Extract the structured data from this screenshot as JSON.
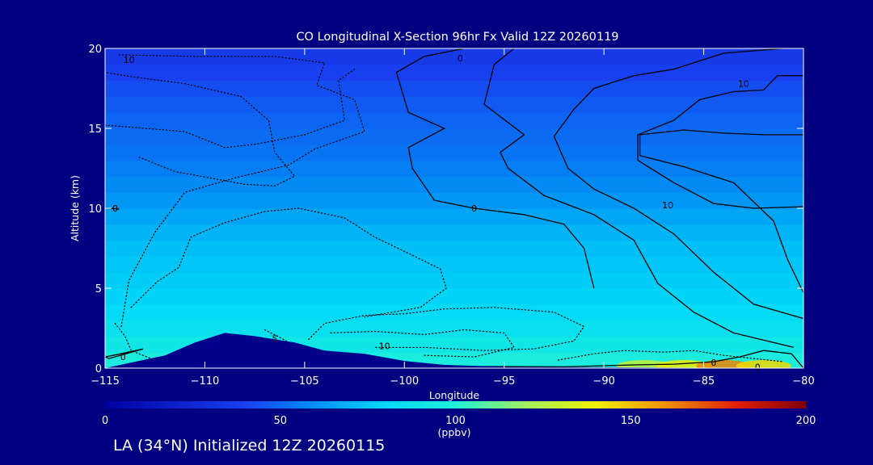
{
  "chart_data": {
    "type": "heatmap",
    "title": "CO Longitudinal X-Section 96hr  Fx Valid 12Z 20260119",
    "xlabel": "Longitude",
    "ylabel": "Altitude (km)",
    "xlim": [
      -115,
      -80
    ],
    "ylim": [
      0,
      20
    ],
    "x_ticks": [
      -115,
      -110,
      -105,
      -100,
      -95,
      -90,
      -85,
      -80
    ],
    "x_tick_labels": [
      "−115",
      "−110",
      "−105",
      "−100",
      "−95",
      "−90",
      "−85",
      "−80"
    ],
    "y_ticks": [
      0,
      5,
      10,
      15,
      20
    ],
    "y_tick_labels": [
      "0",
      "5",
      "10",
      "15",
      "20"
    ],
    "colorbar": {
      "label": "(ppbv)",
      "range": [
        0,
        200
      ],
      "ticks": [
        0,
        50,
        100,
        150,
        200
      ],
      "tick_labels": [
        "0",
        "50",
        "100",
        "150",
        "200"
      ]
    },
    "color_stops": [
      {
        "value": 0,
        "color": "#0000a0"
      },
      {
        "value": 40,
        "color": "#1840f0"
      },
      {
        "value": 60,
        "color": "#0090f4"
      },
      {
        "value": 80,
        "color": "#00d8f8"
      },
      {
        "value": 100,
        "color": "#20f0d8"
      },
      {
        "value": 120,
        "color": "#a0f060"
      },
      {
        "value": 140,
        "color": "#f0f000"
      },
      {
        "value": 160,
        "color": "#f09000"
      },
      {
        "value": 180,
        "color": "#e02000"
      },
      {
        "value": 200,
        "color": "#800000"
      }
    ],
    "co_profile": [
      {
        "altitude": 0,
        "ppbv": 100
      },
      {
        "altitude": 1,
        "ppbv": 94
      },
      {
        "altitude": 2,
        "ppbv": 88
      },
      {
        "altitude": 3,
        "ppbv": 84
      },
      {
        "altitude": 4,
        "ppbv": 80
      },
      {
        "altitude": 5,
        "ppbv": 78
      },
      {
        "altitude": 6,
        "ppbv": 76
      },
      {
        "altitude": 7,
        "ppbv": 74
      },
      {
        "altitude": 8,
        "ppbv": 72
      },
      {
        "altitude": 9,
        "ppbv": 68
      },
      {
        "altitude": 10,
        "ppbv": 64
      },
      {
        "altitude": 11,
        "ppbv": 60
      },
      {
        "altitude": 12,
        "ppbv": 57
      },
      {
        "altitude": 13,
        "ppbv": 54
      },
      {
        "altitude": 14,
        "ppbv": 52
      },
      {
        "altitude": 15,
        "ppbv": 50
      },
      {
        "altitude": 16,
        "ppbv": 48
      },
      {
        "altitude": 17,
        "ppbv": 45
      },
      {
        "altitude": 18,
        "ppbv": 42
      },
      {
        "altitude": 19,
        "ppbv": 38
      },
      {
        "altitude": 20,
        "ppbv": 34
      }
    ],
    "surface_enhancement": [
      {
        "lon": -88,
        "ppbv": 128
      },
      {
        "lon": -86,
        "ppbv": 140
      },
      {
        "lon": -84,
        "ppbv": 162
      },
      {
        "lon": -82,
        "ppbv": 145
      }
    ],
    "terrain": [
      {
        "lon": -115,
        "km": 0
      },
      {
        "lon": -112,
        "km": 0.8
      },
      {
        "lon": -110.5,
        "km": 1.6
      },
      {
        "lon": -109,
        "km": 2.2
      },
      {
        "lon": -107.5,
        "km": 2.0
      },
      {
        "lon": -105.5,
        "km": 1.6
      },
      {
        "lon": -104,
        "km": 1.1
      },
      {
        "lon": -102,
        "km": 0.9
      },
      {
        "lon": -100,
        "km": 0.45
      },
      {
        "lon": -98,
        "km": 0.2
      },
      {
        "lon": -95,
        "km": 0.08
      },
      {
        "lon": -90,
        "km": 0.05
      },
      {
        "lon": -80,
        "km": 0
      }
    ],
    "contours": [
      {
        "style": "solid",
        "points": [
          [
            -97,
            20
          ],
          [
            -99,
            19.5
          ],
          [
            -100.4,
            18.5
          ],
          [
            -99.8,
            16
          ],
          [
            -98,
            15
          ],
          [
            -99.8,
            13.8
          ],
          [
            -99.6,
            12.5
          ],
          [
            -98.5,
            10.5
          ],
          [
            -96.5,
            10
          ],
          [
            -94,
            9.6
          ],
          [
            -92,
            9
          ],
          [
            -91,
            7.5
          ],
          [
            -90.5,
            5
          ]
        ],
        "labels": [
          {
            "lon": -97.2,
            "alt": 19.4,
            "text": "0"
          },
          {
            "lon": -96.5,
            "alt": 10,
            "text": "0"
          }
        ]
      },
      {
        "style": "solid",
        "points": [
          [
            -94.5,
            20
          ],
          [
            -95.5,
            19
          ],
          [
            -96,
            16.5
          ],
          [
            -94,
            14.6
          ],
          [
            -95.2,
            13.5
          ],
          [
            -94.8,
            12.5
          ],
          [
            -93,
            10.8
          ],
          [
            -90.5,
            9.6
          ],
          [
            -88.5,
            8
          ],
          [
            -87.3,
            5.3
          ],
          [
            -85.5,
            3.5
          ],
          [
            -83.5,
            2.2
          ],
          [
            -80.5,
            1.3
          ]
        ],
        "labels": []
      },
      {
        "style": "solid",
        "points": [
          [
            -81,
            20
          ],
          [
            -84,
            19.7
          ],
          [
            -86.5,
            18.7
          ],
          [
            -88.5,
            18.3
          ],
          [
            -90.5,
            17.5
          ],
          [
            -91.5,
            16.2
          ],
          [
            -92.5,
            14.5
          ],
          [
            -91.8,
            12.5
          ],
          [
            -90.5,
            11.2
          ],
          [
            -88.5,
            10
          ],
          [
            -86.5,
            8.4
          ],
          [
            -84.5,
            6
          ],
          [
            -82.5,
            4
          ],
          [
            -80,
            3.1
          ]
        ],
        "labels": [
          {
            "lon": -83,
            "alt": 17.8,
            "text": "10"
          }
        ]
      },
      {
        "style": "solid",
        "points": [
          [
            -80,
            18.3
          ],
          [
            -81.3,
            18.3
          ],
          [
            -82,
            17.4
          ],
          [
            -83.5,
            17.3
          ],
          [
            -85.2,
            16.8
          ],
          [
            -86.5,
            15.5
          ],
          [
            -88.3,
            14.6
          ],
          [
            -88.3,
            13
          ],
          [
            -86.5,
            11.6
          ],
          [
            -84.5,
            10.3
          ],
          [
            -82.5,
            10
          ],
          [
            -80,
            10.1
          ]
        ],
        "labels": [
          {
            "lon": -86.8,
            "alt": 10.2,
            "text": "10"
          }
        ]
      },
      {
        "style": "solid",
        "points": [
          [
            -80,
            14.6
          ],
          [
            -82,
            14.6
          ],
          [
            -84,
            14.7
          ],
          [
            -86,
            14.9
          ],
          [
            -88.2,
            14.6
          ],
          [
            -88.2,
            13.3
          ],
          [
            -86,
            12.6
          ],
          [
            -83.5,
            11.6
          ],
          [
            -81.5,
            9.2
          ],
          [
            -80.8,
            6.8
          ],
          [
            -80,
            4.7
          ]
        ],
        "labels": []
      },
      {
        "style": "solid",
        "points": [
          [
            -80,
            0
          ],
          [
            -80.6,
            0.9
          ],
          [
            -82,
            1.1
          ],
          [
            -83.2,
            0.7
          ],
          [
            -84.5,
            0.4
          ],
          [
            -86.5,
            0.25
          ],
          [
            -88.5,
            0.2
          ],
          [
            -92,
            0.08
          ],
          [
            -97,
            0.1
          ]
        ],
        "labels": [
          {
            "lon": -84.5,
            "alt": 0.35,
            "text": "0"
          },
          {
            "lon": -82.3,
            "alt": 0.08,
            "text": "0"
          }
        ]
      },
      {
        "style": "solid",
        "points": [
          [
            -115,
            0.7
          ],
          [
            -114.4,
            0.85
          ],
          [
            -113.1,
            1.2
          ],
          [
            -114.8,
            0.6
          ],
          [
            -115,
            0.7
          ]
        ],
        "labels": [
          {
            "lon": -114.1,
            "alt": 0.7,
            "text": "0"
          }
        ]
      },
      {
        "style": "solid",
        "points": [
          [
            -115,
            10
          ],
          [
            -114.9,
            10
          ],
          [
            -114.3,
            9.95
          ]
        ],
        "labels": [
          {
            "lon": -114.5,
            "alt": 10,
            "text": "0"
          }
        ]
      },
      {
        "style": "dotted",
        "points": [
          [
            -114.3,
            19.6
          ],
          [
            -110.5,
            19.5
          ],
          [
            -106.5,
            19.5
          ],
          [
            -104,
            19.1
          ],
          [
            -104.4,
            17.7
          ],
          [
            -102.5,
            16.8
          ],
          [
            -102,
            14.8
          ],
          [
            -104.5,
            13.7
          ],
          [
            -105.8,
            12.7
          ],
          [
            -108.5,
            11.9
          ],
          [
            -111,
            11
          ],
          [
            -112.5,
            8.5
          ],
          [
            -113.8,
            5.5
          ],
          [
            -114.2,
            2.5
          ]
        ],
        "labels": [
          {
            "lon": -113.8,
            "alt": 19.3,
            "text": "10"
          }
        ]
      },
      {
        "style": "dotted",
        "points": [
          [
            -113.3,
            13.2
          ],
          [
            -111.5,
            12.3
          ],
          [
            -108,
            11.5
          ],
          [
            -106.5,
            11.4
          ],
          [
            -105.5,
            12
          ],
          [
            -106.5,
            13.5
          ],
          [
            -106.8,
            15.5
          ],
          [
            -108.2,
            17
          ],
          [
            -111,
            17.8
          ],
          [
            -113.5,
            18.2
          ],
          [
            -115,
            18.5
          ]
        ],
        "labels": []
      },
      {
        "style": "dotted",
        "points": [
          [
            -115,
            15.2
          ],
          [
            -113,
            15
          ],
          [
            -111,
            14.8
          ],
          [
            -109,
            13.8
          ],
          [
            -107.5,
            14
          ],
          [
            -105,
            14.6
          ],
          [
            -103,
            15.5
          ],
          [
            -103.3,
            18
          ],
          [
            -102.5,
            18.7
          ]
        ],
        "labels": []
      },
      {
        "style": "dotted",
        "points": [
          [
            -113.7,
            3.8
          ],
          [
            -112.4,
            5.4
          ],
          [
            -111.3,
            6.3
          ],
          [
            -110.7,
            8.2
          ],
          [
            -109,
            9.1
          ],
          [
            -107,
            9.8
          ],
          [
            -105.3,
            10
          ],
          [
            -103,
            9.4
          ],
          [
            -101.5,
            8.2
          ],
          [
            -99.5,
            7
          ],
          [
            -98.2,
            6.2
          ],
          [
            -97.9,
            5
          ],
          [
            -99.2,
            3.8
          ],
          [
            -102,
            3.2
          ]
        ],
        "labels": []
      },
      {
        "style": "dotted",
        "points": [
          [
            -104.8,
            1.8
          ],
          [
            -104,
            2.8
          ],
          [
            -102,
            3.3
          ],
          [
            -100,
            3.4
          ],
          [
            -98,
            3.7
          ],
          [
            -95.5,
            3.8
          ],
          [
            -92.5,
            3.5
          ],
          [
            -91,
            2.6
          ],
          [
            -91.5,
            1.7
          ],
          [
            -93.5,
            1.2
          ],
          [
            -96,
            1.1
          ],
          [
            -99,
            1.3
          ],
          [
            -101.5,
            1.3
          ]
        ],
        "labels": [
          {
            "lon": -101,
            "alt": 1.4,
            "text": "10"
          }
        ]
      },
      {
        "style": "dotted",
        "points": [
          [
            -103.7,
            2.2
          ],
          [
            -101.5,
            2.3
          ],
          [
            -99,
            2.1
          ],
          [
            -97,
            2.4
          ],
          [
            -95,
            2.2
          ],
          [
            -94.5,
            1.3
          ],
          [
            -96.5,
            0.7
          ],
          [
            -99,
            0.8
          ]
        ],
        "labels": []
      },
      {
        "style": "dotted",
        "points": [
          [
            -92.3,
            0.5
          ],
          [
            -90.5,
            0.9
          ],
          [
            -89,
            1.1
          ],
          [
            -87,
            1.0
          ],
          [
            -85.5,
            1.1
          ],
          [
            -84,
            0.8
          ],
          [
            -82.5,
            0.6
          ],
          [
            -81,
            0.4
          ]
        ],
        "labels": []
      },
      {
        "style": "dotted",
        "points": [
          [
            -114.5,
            2.8
          ],
          [
            -114,
            2
          ],
          [
            -113.7,
            1.1
          ],
          [
            -112.5,
            0.5
          ]
        ],
        "labels": []
      },
      {
        "style": "dotted",
        "points": [
          [
            -107,
            2.4
          ],
          [
            -106.2,
            1.9
          ],
          [
            -105.8,
            1.6
          ]
        ],
        "labels": [
          {
            "lon": -106.5,
            "alt": 1.85,
            "text": "5"
          }
        ]
      }
    ]
  },
  "footer": {
    "text": "LA (34°N) Initialized 12Z 20260115"
  }
}
